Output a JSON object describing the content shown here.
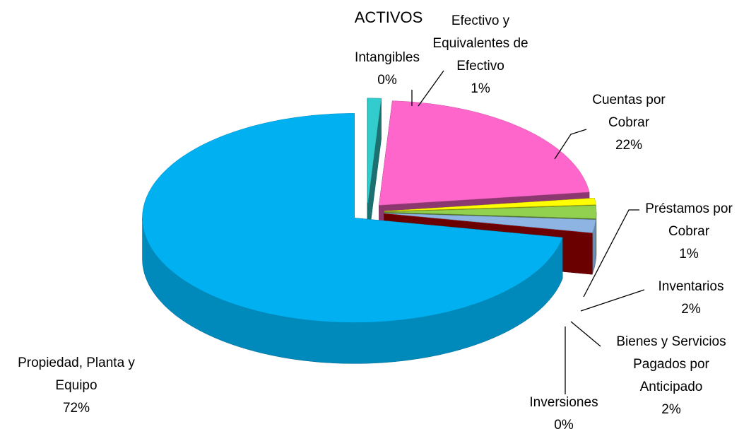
{
  "chart_data": {
    "type": "pie",
    "title": "ACTIVOS",
    "categories": [
      "Intangibles",
      "Efectivo y Equivalentes de Efectivo",
      "Cuentas por Cobrar",
      "Préstamos por Cobrar",
      "Inventarios",
      "Bienes y Servicios Pagados por Anticipado",
      "Inversiones",
      "Propiedad, Planta y Equipo"
    ],
    "values": [
      0,
      1,
      22,
      1,
      2,
      2,
      0,
      72
    ],
    "value_labels": [
      "0%",
      "1%",
      "22%",
      "1%",
      "2%",
      "2%",
      "0%",
      "72%"
    ],
    "colors": [
      "#00FFFF",
      "#33CCCC",
      "#FF66CC",
      "#FFFF00",
      "#92D050",
      "#8DB4E2",
      "#C00000",
      "#00B0F0"
    ]
  }
}
